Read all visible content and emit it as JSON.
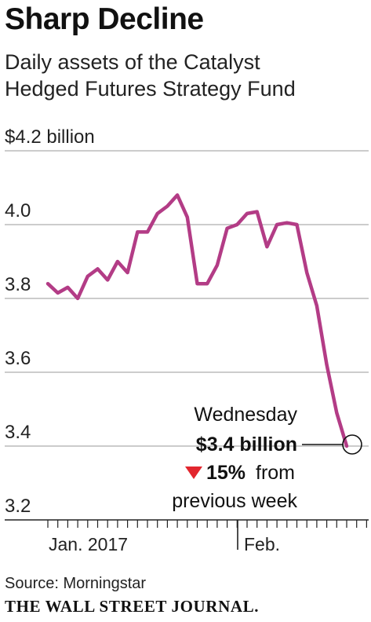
{
  "header": {
    "title": "Sharp Decline",
    "subtitle_line1": "Daily assets of the Catalyst",
    "subtitle_line2": "Hedged Futures Strategy Fund"
  },
  "chart_data": {
    "type": "line",
    "ylabel": "$4.2 billion",
    "ylim": [
      3.2,
      4.2
    ],
    "yticks": [
      {
        "value": 4.2,
        "label": "$4.2 billion"
      },
      {
        "value": 4.0,
        "label": "4.0"
      },
      {
        "value": 3.8,
        "label": "3.8"
      },
      {
        "value": 3.6,
        "label": "3.6"
      },
      {
        "value": 3.4,
        "label": "3.4"
      },
      {
        "value": 3.2,
        "label": "3.2"
      }
    ],
    "x_labels": [
      {
        "label": "Jan. 2017"
      },
      {
        "label": "Feb."
      }
    ],
    "series": [
      {
        "values": [
          3.84,
          3.815,
          3.83,
          3.8,
          3.86,
          3.88,
          3.85,
          3.9,
          3.87,
          3.98,
          3.98,
          4.03,
          4.05,
          4.08,
          4.02,
          3.84,
          3.84,
          3.89,
          3.99,
          4.0,
          4.03,
          4.035,
          3.94,
          4.0,
          4.005,
          4.0,
          3.87,
          3.78,
          3.62,
          3.49,
          3.4
        ],
        "color": "#b33c86"
      }
    ],
    "annotation": {
      "day": "Wednesday",
      "value": "$3.4 billion",
      "change_pct": "15%",
      "change_text": "from",
      "change_text2": "previous week",
      "arrow_color": "#e2262e"
    },
    "grid": true
  },
  "footer": {
    "source": "Source: Morningstar",
    "brand": "THE WALL STREET JOURNAL."
  }
}
